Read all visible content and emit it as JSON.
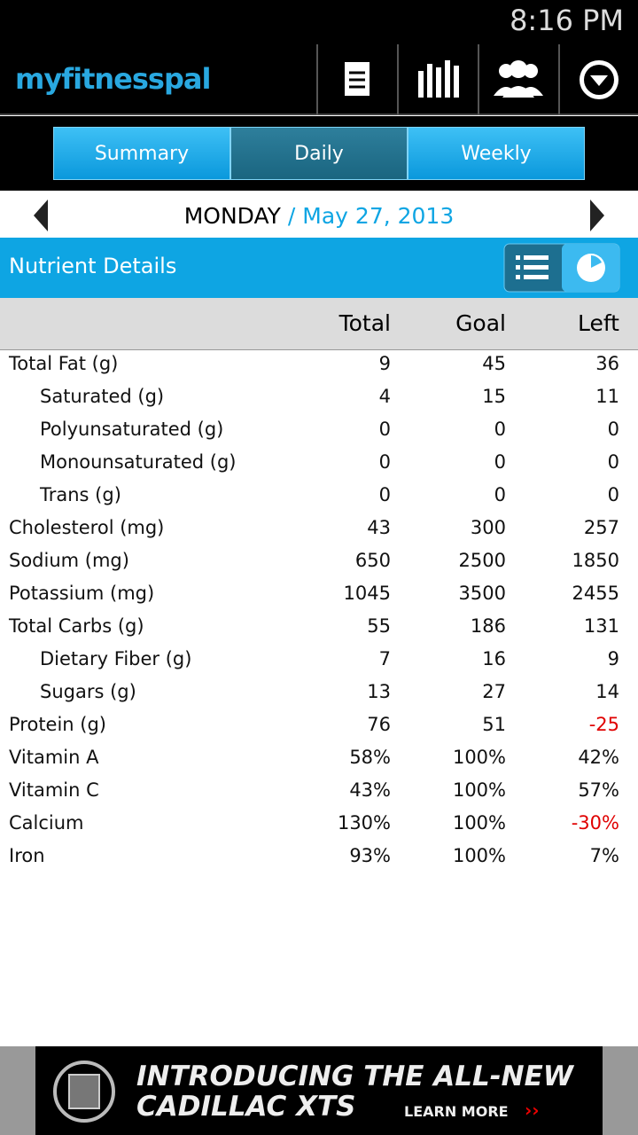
{
  "status_bar": {
    "time": "8:16 PM"
  },
  "header": {
    "logo": "myfitnesspal"
  },
  "tabs": {
    "items": [
      "Summary",
      "Daily",
      "Weekly"
    ],
    "selected": 1
  },
  "date_bar": {
    "day": "MONDAY",
    "separator": "/",
    "date": "May 27, 2013"
  },
  "section": {
    "title": "Nutrient Details"
  },
  "table": {
    "columns": [
      "Total",
      "Goal",
      "Left"
    ],
    "rows": [
      {
        "name": "Total Fat (g)",
        "total": "9",
        "goal": "45",
        "left": "36"
      },
      {
        "name": "Saturated (g)",
        "total": "4",
        "goal": "15",
        "left": "11",
        "indent": true
      },
      {
        "name": "Polyunsaturated (g)",
        "total": "0",
        "goal": "0",
        "left": "0",
        "indent": true
      },
      {
        "name": "Monounsaturated (g)",
        "total": "0",
        "goal": "0",
        "left": "0",
        "indent": true
      },
      {
        "name": "Trans (g)",
        "total": "0",
        "goal": "0",
        "left": "0",
        "indent": true
      },
      {
        "name": "Cholesterol (mg)",
        "total": "43",
        "goal": "300",
        "left": "257"
      },
      {
        "name": "Sodium (mg)",
        "total": "650",
        "goal": "2500",
        "left": "1850"
      },
      {
        "name": "Potassium (mg)",
        "total": "1045",
        "goal": "3500",
        "left": "2455"
      },
      {
        "name": "Total Carbs (g)",
        "total": "55",
        "goal": "186",
        "left": "131"
      },
      {
        "name": "Dietary Fiber (g)",
        "total": "7",
        "goal": "16",
        "left": "9",
        "indent": true
      },
      {
        "name": "Sugars (g)",
        "total": "13",
        "goal": "27",
        "left": "14",
        "indent": true
      },
      {
        "name": "Protein (g)",
        "total": "76",
        "goal": "51",
        "left": "-25",
        "left_color": "#e00000"
      },
      {
        "name": "Vitamin A",
        "total": "58%",
        "goal": "100%",
        "left": "42%"
      },
      {
        "name": "Vitamin C",
        "total": "43%",
        "goal": "100%",
        "left": "57%"
      },
      {
        "name": "Calcium",
        "total": "130%",
        "goal": "100%",
        "left": "-30%",
        "left_color": "#e00000"
      },
      {
        "name": "Iron",
        "total": "93%",
        "goal": "100%",
        "left": "7%"
      }
    ]
  },
  "ad": {
    "line1": "INTRODUCING THE ALL-NEW",
    "line2": "CADILLAC XTS",
    "cta": "LEARN MORE",
    "cta_arrows": "››"
  }
}
